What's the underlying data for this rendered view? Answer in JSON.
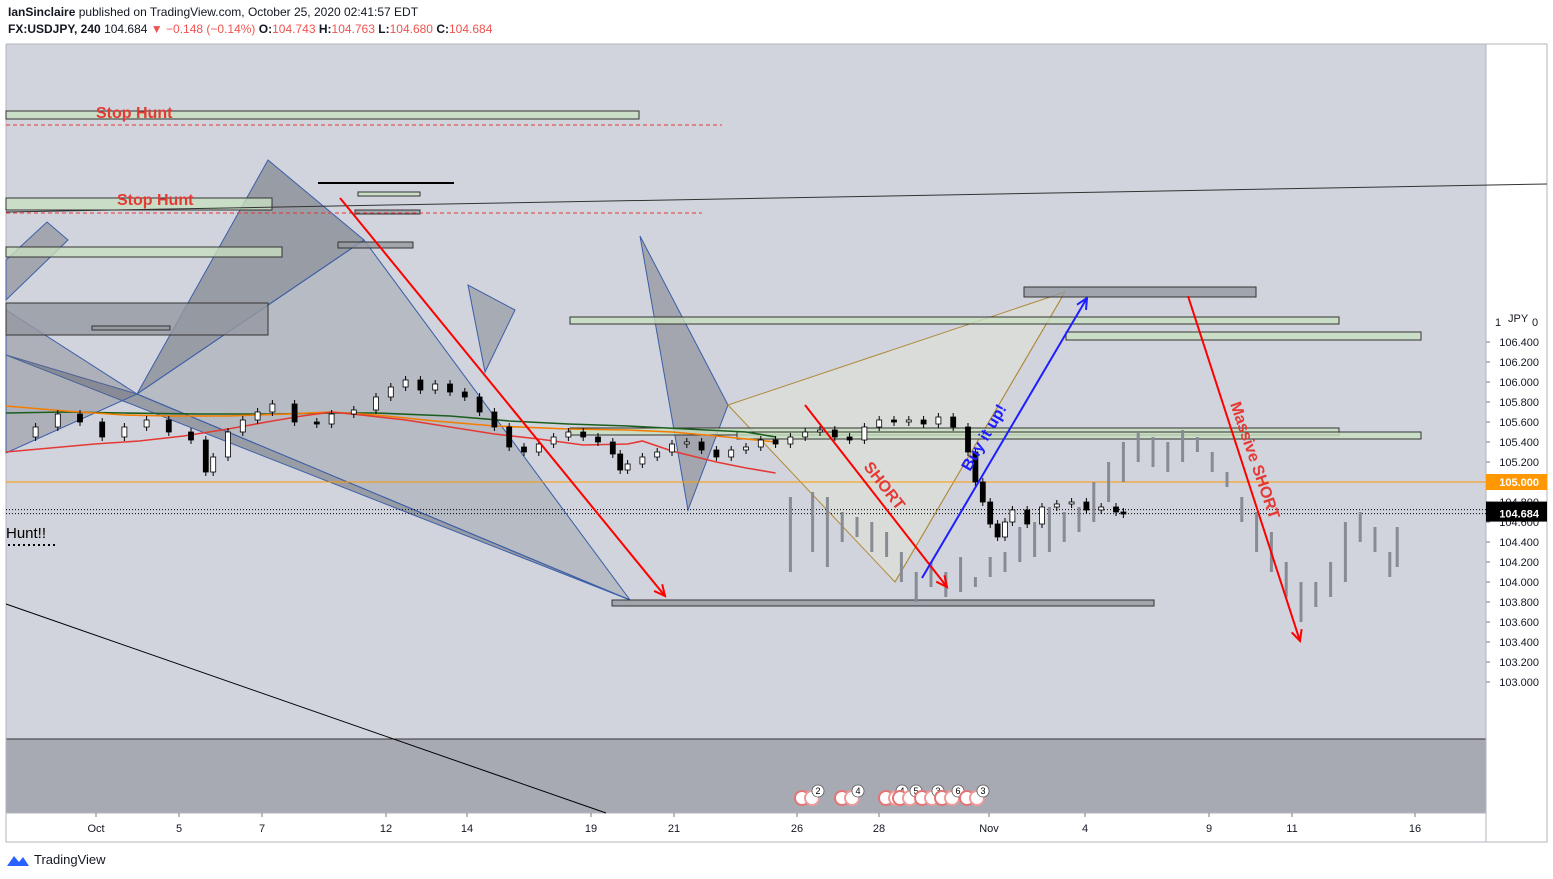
{
  "header": {
    "author": "IanSinclaire",
    "published_text": "published on TradingView.com, October 25, 2020 02:41:57 EDT",
    "symbol": "FX:USDJPY, 240",
    "last": "104.684",
    "change": "−0.148 (−0.14%)",
    "o_label": "O:",
    "o": "104.743",
    "h_label": "H:",
    "h": "104.763",
    "l_label": "L:",
    "l": "104.680",
    "c_label": "C:",
    "c": "104.684"
  },
  "footer": {
    "brand": "TradingView"
  },
  "colors": {
    "bg": "#d1d4dc",
    "up": "#ffffff",
    "down": "#000000",
    "ghost": "#878b94",
    "ma_green": "#1b5e20",
    "ma_orange": "#f57c00",
    "ma_red": "#e53935",
    "zone_green": "#c8dfc0",
    "zone_gray": "#9598a1",
    "accent_red": "#ff0000",
    "accent_blue": "#1e1eff"
  },
  "chart_data": {
    "type": "candlestick",
    "symbol": "USDJPY",
    "currency": "JPY",
    "ylim": [
      102.85,
      107.1
    ],
    "y_ticks": [
      "106.400",
      "106.200",
      "106.000",
      "105.800",
      "105.600",
      "105.400",
      "105.200",
      "105.000",
      "104.800",
      "104.600",
      "104.400",
      "104.200",
      "104.000",
      "103.800",
      "103.600",
      "103.400",
      "103.200",
      "103.000"
    ],
    "y_top_label": "1",
    "y_top_label2": "0",
    "x_ticks": [
      "Oct",
      "5",
      "7",
      "12",
      "14",
      "19",
      "21",
      "26",
      "28",
      "Nov",
      "4",
      "9",
      "11",
      "16"
    ],
    "price_labels": [
      {
        "text": "105.000",
        "price": 105.0,
        "color": "#ff9800"
      },
      {
        "text": "104.724",
        "price": 104.724,
        "color": "#000000"
      },
      {
        "text": "104.684",
        "price": 104.684,
        "color": "#000000"
      }
    ],
    "annotations": [
      {
        "text": "Stop Hunt",
        "color": "#e53935"
      },
      {
        "text": "Stop Hunt",
        "color": "#e53935"
      },
      {
        "text": "Hunt!!",
        "color": "#000000"
      },
      {
        "text": "SHORT",
        "color": "#e53935"
      },
      {
        "text": "Buy it up!",
        "color": "#1e1eff"
      },
      {
        "text": "Massive SHORT",
        "color": "#e53935"
      }
    ],
    "event_badges": [
      "2",
      "4",
      "4",
      "5",
      "3",
      "6",
      "3"
    ],
    "moving_averages": [
      {
        "color": "#1b5e20",
        "points": [
          [
            0,
            105.69
          ],
          [
            0.04,
            105.7
          ],
          [
            0.08,
            105.69
          ],
          [
            0.13,
            105.68
          ],
          [
            0.18,
            105.68
          ],
          [
            0.22,
            105.69
          ],
          [
            0.25,
            105.69
          ],
          [
            0.3,
            105.66
          ],
          [
            0.34,
            105.61
          ],
          [
            0.38,
            105.58
          ],
          [
            0.42,
            105.56
          ],
          [
            0.46,
            105.53
          ],
          [
            0.5,
            105.5
          ],
          [
            0.52,
            105.45
          ]
        ]
      },
      {
        "color": "#f57c00",
        "points": [
          [
            0,
            105.76
          ],
          [
            0.04,
            105.71
          ],
          [
            0.08,
            105.67
          ],
          [
            0.11,
            105.66
          ],
          [
            0.15,
            105.66
          ],
          [
            0.19,
            105.68
          ],
          [
            0.22,
            105.7
          ],
          [
            0.25,
            105.67
          ],
          [
            0.29,
            105.61
          ],
          [
            0.33,
            105.56
          ],
          [
            0.38,
            105.53
          ],
          [
            0.42,
            105.52
          ],
          [
            0.45,
            105.5
          ],
          [
            0.48,
            105.46
          ],
          [
            0.52,
            105.4
          ]
        ]
      },
      {
        "color": "#e53935",
        "points": [
          [
            0,
            105.3
          ],
          [
            0.03,
            105.34
          ],
          [
            0.06,
            105.38
          ],
          [
            0.09,
            105.41
          ],
          [
            0.12,
            105.46
          ],
          [
            0.15,
            105.53
          ],
          [
            0.18,
            105.61
          ],
          [
            0.2,
            105.66
          ],
          [
            0.22,
            105.7
          ],
          [
            0.24,
            105.67
          ],
          [
            0.27,
            105.62
          ],
          [
            0.3,
            105.55
          ],
          [
            0.33,
            105.48
          ],
          [
            0.36,
            105.43
          ],
          [
            0.39,
            105.37
          ],
          [
            0.42,
            105.38
          ],
          [
            0.43,
            105.41
          ],
          [
            0.45,
            105.31
          ],
          [
            0.48,
            105.2
          ],
          [
            0.5,
            105.14
          ],
          [
            0.52,
            105.09
          ]
        ]
      }
    ]
  }
}
